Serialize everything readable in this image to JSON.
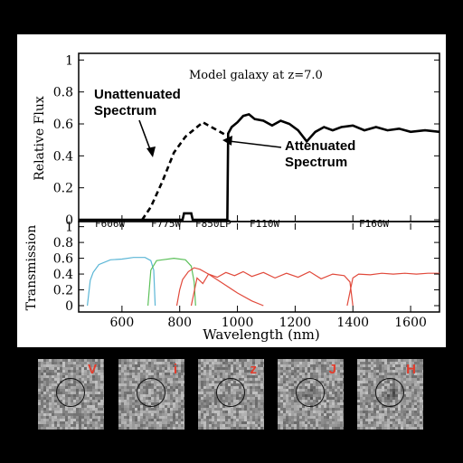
{
  "chart_data": [
    {
      "type": "line",
      "title": "Model galaxy at z=7.0",
      "ylabel": "Relative Flux",
      "xlim": [
        450,
        1700
      ],
      "ylim": [
        0,
        1
      ],
      "yticks": [
        "0",
        "0.2",
        "0.4",
        "0.6",
        "0.8",
        "1"
      ],
      "annotations": [
        {
          "text_lines": [
            "Unattenuated",
            "Spectrum"
          ]
        },
        {
          "text_lines": [
            "Attenuated",
            "Spectrum"
          ]
        }
      ],
      "series": [
        {
          "name": "Unattenuated Spectrum",
          "style": "dashed",
          "color": "#000000",
          "x": [
            670,
            700,
            740,
            780,
            820,
            860,
            880,
            900,
            940,
            960
          ],
          "y": [
            0.0,
            0.08,
            0.24,
            0.42,
            0.52,
            0.58,
            0.61,
            0.59,
            0.55,
            0.53
          ]
        },
        {
          "name": "Attenuated Spectrum",
          "style": "solid",
          "color": "#000000",
          "x": [
            450,
            810,
            815,
            840,
            845,
            965,
            968,
            980,
            1000,
            1020,
            1040,
            1060,
            1090,
            1120,
            1150,
            1180,
            1210,
            1240,
            1270,
            1300,
            1330,
            1360,
            1400,
            1440,
            1480,
            1520,
            1560,
            1600,
            1650,
            1700
          ],
          "y": [
            0.0,
            0.0,
            0.04,
            0.04,
            0.0,
            0.0,
            0.54,
            0.58,
            0.61,
            0.65,
            0.66,
            0.63,
            0.62,
            0.59,
            0.62,
            0.6,
            0.56,
            0.49,
            0.55,
            0.58,
            0.56,
            0.58,
            0.59,
            0.56,
            0.58,
            0.56,
            0.57,
            0.55,
            0.56,
            0.55
          ]
        }
      ]
    },
    {
      "type": "line",
      "ylabel": "Transmission",
      "xlabel": "Wavelength (nm)",
      "xlim": [
        450,
        1700
      ],
      "ylim": [
        0,
        1
      ],
      "xticks": [
        "600",
        "800",
        "1000",
        "1200",
        "1400",
        "1600"
      ],
      "yticks": [
        "0",
        "0.2",
        "0.4",
        "0.6",
        "0.8",
        "1"
      ],
      "filters": [
        {
          "name": "F606W",
          "color": "#5bb6d6",
          "x": [
            480,
            490,
            500,
            520,
            560,
            600,
            640,
            680,
            700,
            710,
            715
          ],
          "y": [
            0,
            0.32,
            0.42,
            0.52,
            0.58,
            0.59,
            0.61,
            0.61,
            0.57,
            0.45,
            0
          ]
        },
        {
          "name": "F775W",
          "color": "#5cc05a",
          "x": [
            690,
            700,
            720,
            740,
            780,
            820,
            840,
            850,
            855
          ],
          "y": [
            0,
            0.45,
            0.57,
            0.58,
            0.6,
            0.58,
            0.5,
            0.3,
            0
          ]
        },
        {
          "name": "F850LP",
          "color": "#e14a3c",
          "x": [
            790,
            800,
            810,
            830,
            850,
            870,
            900,
            950,
            1000,
            1050,
            1090
          ],
          "y": [
            0,
            0.2,
            0.33,
            0.43,
            0.48,
            0.46,
            0.4,
            0.28,
            0.16,
            0.06,
            0
          ]
        },
        {
          "name": "F110W",
          "color": "#e14a3c",
          "x": [
            840,
            860,
            880,
            900,
            930,
            960,
            990,
            1020,
            1050,
            1090,
            1130,
            1170,
            1210,
            1250,
            1290,
            1330,
            1370,
            1390,
            1400
          ],
          "y": [
            0,
            0.35,
            0.28,
            0.4,
            0.36,
            0.42,
            0.38,
            0.43,
            0.37,
            0.42,
            0.35,
            0.41,
            0.36,
            0.43,
            0.34,
            0.4,
            0.38,
            0.3,
            0
          ]
        },
        {
          "name": "F160W",
          "color": "#e14a3c",
          "x": [
            1380,
            1400,
            1420,
            1460,
            1500,
            1540,
            1580,
            1620,
            1660,
            1700
          ],
          "y": [
            0,
            0.35,
            0.4,
            0.39,
            0.41,
            0.4,
            0.41,
            0.4,
            0.41,
            0.41
          ]
        }
      ]
    }
  ],
  "thumbnails": [
    {
      "label": "V"
    },
    {
      "label": "i"
    },
    {
      "label": "z"
    },
    {
      "label": "J"
    },
    {
      "label": "H"
    }
  ]
}
